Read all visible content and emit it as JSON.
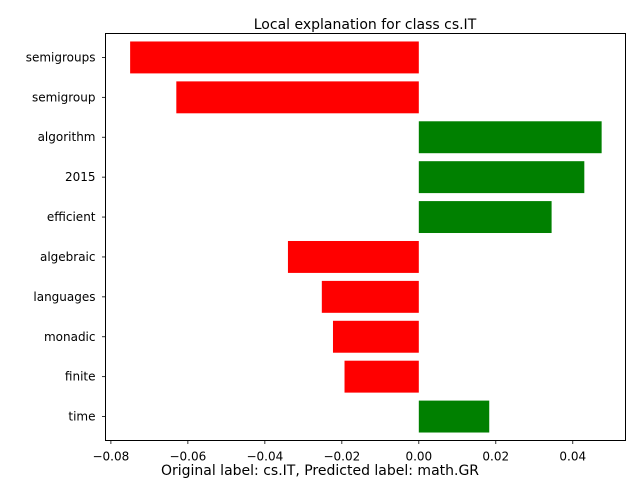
{
  "chart_data": {
    "type": "bar",
    "orientation": "horizontal",
    "title": "Local explanation for class cs.IT",
    "caption": "Original label: cs.IT, Predicted label: math.GR",
    "categories": [
      "semigroups",
      "semigroup",
      "algorithm",
      "2015",
      "efficient",
      "algebraic",
      "languages",
      "monadic",
      "finite",
      "time"
    ],
    "values": [
      -0.075,
      -0.063,
      0.0475,
      0.043,
      0.0345,
      -0.034,
      -0.0252,
      -0.0223,
      -0.0193,
      0.0183
    ],
    "xlim": [
      -0.0814,
      0.0537
    ],
    "xticks": [
      "−0.08",
      "−0.06",
      "−0.04",
      "−0.02",
      "0.00",
      "0.02",
      "0.04"
    ],
    "xtick_values": [
      -0.08,
      -0.06,
      -0.04,
      -0.02,
      0.0,
      0.02,
      0.04
    ],
    "grid": false,
    "colors": {
      "positive": "#008000",
      "negative": "#ff0000"
    }
  }
}
